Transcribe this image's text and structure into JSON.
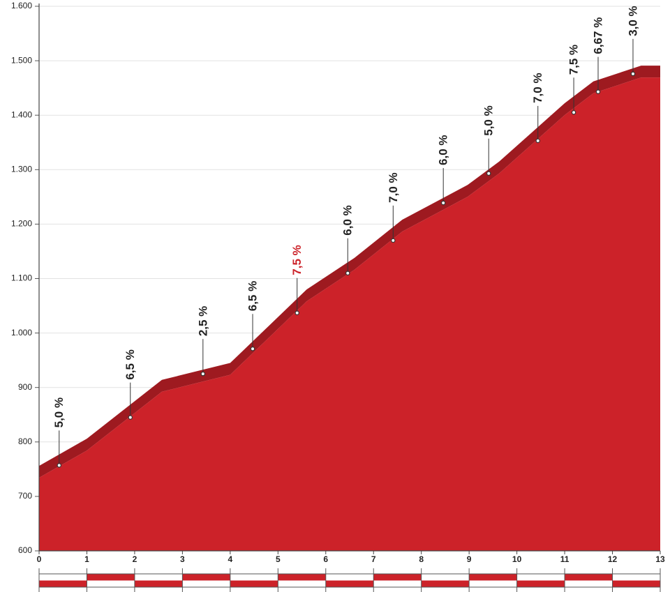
{
  "chart_data": {
    "type": "area",
    "x": [
      0,
      1,
      2.57,
      4.0,
      5.6,
      6.6,
      7.6,
      8.97,
      9.63,
      11.0,
      11.6,
      12.6,
      13
    ],
    "values": [
      756,
      806,
      914,
      945,
      1080,
      1138,
      1208,
      1272,
      1315,
      1422,
      1462,
      1491,
      1491
    ],
    "color": "#cc2229",
    "band_color": "#9e1a20",
    "xlim": [
      0,
      13
    ],
    "xticks": [
      0,
      1,
      2,
      3,
      4,
      5,
      6,
      7,
      8,
      9,
      10,
      11,
      12,
      13
    ],
    "ylim": [
      600,
      1600
    ],
    "yticks": [
      600,
      700,
      800,
      900,
      {
        "value": 1000,
        "label": "1.000"
      },
      {
        "value": 1100,
        "label": "1.100"
      },
      {
        "value": 1200,
        "label": "1.200"
      },
      {
        "value": 1300,
        "label": "1.300"
      },
      {
        "value": 1400,
        "label": "1.400"
      },
      {
        "value": 1500,
        "label": "1.500"
      },
      {
        "value": 1600,
        "label": "1.600"
      }
    ],
    "grid": true,
    "markers": [
      {
        "x": 0.42,
        "y": 757,
        "label": "5,0 %"
      },
      {
        "x": 1.91,
        "y": 845,
        "label": "6,5 %"
      },
      {
        "x": 3.43,
        "y": 925,
        "label": "2,5 %"
      },
      {
        "x": 4.47,
        "y": 971,
        "label": "6,5 %"
      },
      {
        "x": 5.4,
        "y": 1037,
        "label": "7,5 %",
        "color": "#cc2229"
      },
      {
        "x": 6.46,
        "y": 1110,
        "label": "6,0 %"
      },
      {
        "x": 7.41,
        "y": 1170,
        "label": "7,0 %"
      },
      {
        "x": 8.46,
        "y": 1239,
        "label": "6,0 %"
      },
      {
        "x": 9.41,
        "y": 1293,
        "label": "5,0 %"
      },
      {
        "x": 10.44,
        "y": 1353,
        "label": "7,0 %"
      },
      {
        "x": 11.19,
        "y": 1405,
        "label": "7,5 %"
      },
      {
        "x": 11.7,
        "y": 1443,
        "label": "6,67 %"
      },
      {
        "x": 12.43,
        "y": 1476,
        "label": "3,0 %"
      }
    ]
  }
}
